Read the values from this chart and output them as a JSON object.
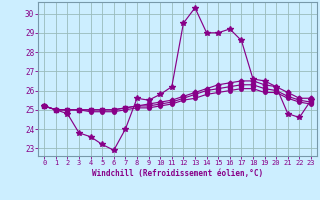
{
  "xlabel": "Windchill (Refroidissement éolien,°C)",
  "bg_color": "#cceeff",
  "line_color": "#880088",
  "grid_color": "#99bbbb",
  "axis_color": "#7799aa",
  "xlim": [
    -0.5,
    23.5
  ],
  "ylim": [
    22.6,
    30.6
  ],
  "yticks": [
    23,
    24,
    25,
    26,
    27,
    28,
    29,
    30
  ],
  "xticks": [
    0,
    1,
    2,
    3,
    4,
    5,
    6,
    7,
    8,
    9,
    10,
    11,
    12,
    13,
    14,
    15,
    16,
    17,
    18,
    19,
    20,
    21,
    22,
    23
  ],
  "lines": [
    [
      25.2,
      25.0,
      24.8,
      23.8,
      23.6,
      23.2,
      22.9,
      24.0,
      25.6,
      25.5,
      25.8,
      26.2,
      29.5,
      30.3,
      29.0,
      29.0,
      29.2,
      28.6,
      26.6,
      26.5,
      26.2,
      24.8,
      24.6,
      25.5
    ],
    [
      25.2,
      25.0,
      25.0,
      25.0,
      25.0,
      25.0,
      25.0,
      25.1,
      25.2,
      25.3,
      25.4,
      25.5,
      25.7,
      25.9,
      26.1,
      26.3,
      26.4,
      26.5,
      26.5,
      26.3,
      26.2,
      25.9,
      25.6,
      25.6
    ],
    [
      25.2,
      25.0,
      25.0,
      25.0,
      25.0,
      25.0,
      25.0,
      25.1,
      25.2,
      25.2,
      25.3,
      25.4,
      25.6,
      25.8,
      26.0,
      26.1,
      26.2,
      26.3,
      26.3,
      26.1,
      26.0,
      25.7,
      25.5,
      25.4
    ],
    [
      25.2,
      25.0,
      25.0,
      25.0,
      24.9,
      24.9,
      24.9,
      25.0,
      25.1,
      25.1,
      25.2,
      25.3,
      25.5,
      25.6,
      25.8,
      25.9,
      26.0,
      26.1,
      26.1,
      25.9,
      25.9,
      25.6,
      25.4,
      25.3
    ]
  ]
}
